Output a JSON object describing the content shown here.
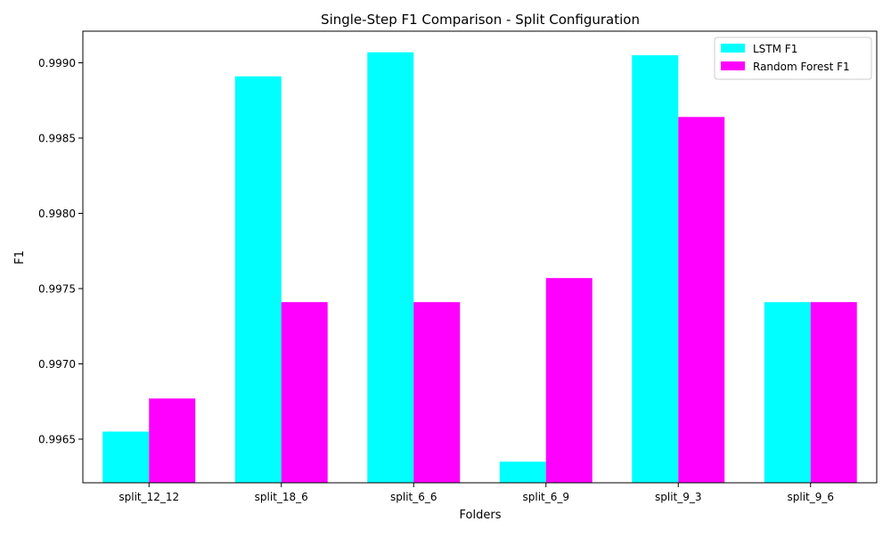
{
  "chart_data": {
    "type": "bar",
    "title": "Single-Step F1 Comparison - Split Configuration",
    "xlabel": "Folders",
    "ylabel": "F1",
    "categories": [
      "split_12_12",
      "split_18_6",
      "split_6_6",
      "split_6_9",
      "split_9_3",
      "split_9_6"
    ],
    "series": [
      {
        "name": "LSTM F1",
        "color": "#00ffff",
        "values": [
          0.99655,
          0.99891,
          0.99907,
          0.99635,
          0.99905,
          0.99741
        ]
      },
      {
        "name": "Random Forest F1",
        "color": "#ff00ff",
        "values": [
          0.99677,
          0.99741,
          0.99741,
          0.99757,
          0.99864,
          0.99741
        ]
      }
    ],
    "ylim": [
      0.99621,
      0.99921
    ],
    "yticks": [
      0.9965,
      0.997,
      0.9975,
      0.998,
      0.9985,
      0.999
    ],
    "ytick_labels": [
      "0.9965",
      "0.9970",
      "0.9975",
      "0.9980",
      "0.9985",
      "0.9990"
    ],
    "grid": false,
    "legend_position": "top-right"
  }
}
